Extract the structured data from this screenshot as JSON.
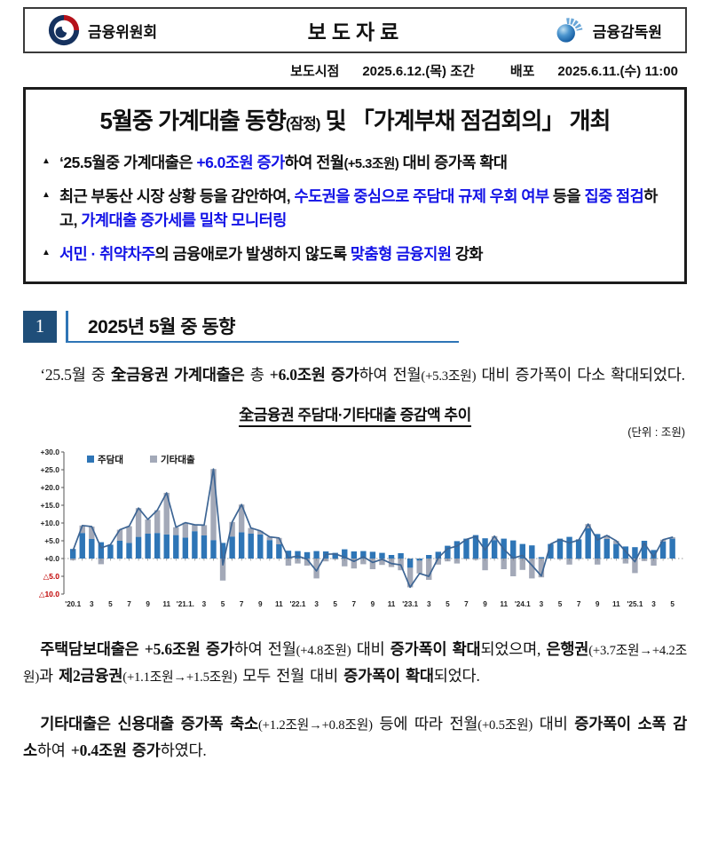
{
  "colors": {
    "text_blue": "#1212e6",
    "navy_box": "#1f4e79",
    "accent": "#2e75b6",
    "bar_mortgage": "#2e75b6",
    "bar_other": "#a3a9b8",
    "line": "#3d6594",
    "negative_red": "#c00000"
  },
  "header": {
    "left_org": "금융위원회",
    "center_title": "보도자료",
    "right_org": "금융감독원"
  },
  "release_info": {
    "time_label": "보도시점",
    "time_value": "2025.6.12.(목) 조간",
    "dist_label": "배포",
    "dist_value": "2025.6.11.(수) 11:00"
  },
  "headline": {
    "title_main": "5월중 가계대출 동향",
    "title_sub": "(잠정)",
    "title_rest": " 및 「가계부채 점검회의」 개최",
    "bullets": [
      {
        "segments": [
          {
            "t": "‘25.5월중 가계대출은 "
          },
          {
            "t": "+6.0조원 증가",
            "c": "blue"
          },
          {
            "t": "하여 전월"
          },
          {
            "t": "(+5.3조원)",
            "small": true
          },
          {
            "t": " 대비 증가폭 확대"
          }
        ]
      },
      {
        "segments": [
          {
            "t": "최근 부동산 시장 상황 등을 감안하여, "
          },
          {
            "t": "수도권을 중심으로 주담대 규제 우회 여부",
            "c": "blue"
          },
          {
            "t": " 등을 "
          },
          {
            "t": "집중 점검",
            "c": "blue"
          },
          {
            "t": "하고, "
          },
          {
            "t": "가계대출 증가세를",
            "c": "blue"
          },
          {
            "t": " "
          },
          {
            "t": "밀착 모니터링",
            "c": "blue"
          }
        ]
      },
      {
        "segments": [
          {
            "t": "서민 · 취약차주",
            "c": "blue"
          },
          {
            "t": "의 금융애로가 발생하지 않도록 "
          },
          {
            "t": "맞춤형 금융지원",
            "c": "blue"
          },
          {
            "t": " 강화"
          }
        ]
      }
    ]
  },
  "section": {
    "number": "1",
    "title": "2025년 5월 중 동향"
  },
  "paragraphs": [
    {
      "segments": [
        {
          "t": "‘25.5월 중 "
        },
        {
          "t": "全금융권 가계대출은",
          "b": true
        },
        {
          "t": " 총 "
        },
        {
          "t": "+6.0조원 증가",
          "b": true
        },
        {
          "t": "하여 전월"
        },
        {
          "t": "(+5.3조원)",
          "small": true
        },
        {
          "t": " 대비 증가폭이 다소 확대되었다."
        }
      ]
    },
    {
      "segments": [
        {
          "t": "주택담보대출은",
          "b": true
        },
        {
          "t": " "
        },
        {
          "t": "+5.6조원 증가",
          "b": true
        },
        {
          "t": "하여 전월"
        },
        {
          "t": "(+4.8조원)",
          "small": true
        },
        {
          "t": " 대비 "
        },
        {
          "t": "증가폭이 확대",
          "b": true
        },
        {
          "t": "되었으며, "
        },
        {
          "t": "은행권",
          "b": true
        },
        {
          "t": "(+3.7조원→+4.2조원)",
          "small": true
        },
        {
          "t": "과 "
        },
        {
          "t": "제2금융권",
          "b": true
        },
        {
          "t": "(+1.1조원→+1.5조원)",
          "small": true
        },
        {
          "t": " 모두 전월 대비 "
        },
        {
          "t": "증가폭이 확대",
          "b": true
        },
        {
          "t": "되었다."
        }
      ]
    },
    {
      "segments": [
        {
          "t": "기타대출은",
          "b": true
        },
        {
          "t": " "
        },
        {
          "t": "신용대출 증가폭 축소",
          "b": true
        },
        {
          "t": "(+1.2조원→+0.8조원)",
          "small": true
        },
        {
          "t": " 등에 따라 전월"
        },
        {
          "t": "(+0.5조원)",
          "small": true
        },
        {
          "t": " 대비 "
        },
        {
          "t": "증가폭이 소폭 감소",
          "b": true
        },
        {
          "t": "하여 "
        },
        {
          "t": "+0.4조원 증가",
          "b": true
        },
        {
          "t": "하였다."
        }
      ]
    }
  ],
  "chart": {
    "title": "全금융권 주담대·기타대출 증감액 추이",
    "unit_note": "(단위 : 조원)"
  },
  "chart_data": {
    "type": "bar+line",
    "title": "全금융권 주담대·기타대출 증감액 추이",
    "ylabel": "조원",
    "ylim": [
      -10,
      30
    ],
    "yticks": [
      30,
      25,
      20,
      15,
      10,
      5,
      0,
      -5,
      -10
    ],
    "ytick_labels": [
      "+30.0",
      "+25.0",
      "+20.0",
      "+15.0",
      "+10.0",
      "+5.0",
      "+0.0",
      "△5.0",
      "△10.0"
    ],
    "legend": [
      {
        "name": "주담대",
        "color": "#2e75b6"
      },
      {
        "name": "기타대출",
        "color": "#a3a9b8"
      }
    ],
    "legend_position": "top-left",
    "grid": false,
    "x_tick_labels": [
      "'20.1",
      "3",
      "5",
      "7",
      "9",
      "11",
      "'21.1.",
      "3",
      "5",
      "7",
      "9",
      "11",
      "'22.1",
      "3",
      "5",
      "7",
      "9",
      "11",
      "'23.1",
      "3",
      "5",
      "7",
      "9",
      "11",
      "'24.1",
      "3",
      "5",
      "7",
      "9",
      "11",
      "'25.1",
      "3",
      "5"
    ],
    "categories": [
      "2020.1",
      "2020.2",
      "2020.3",
      "2020.4",
      "2020.5",
      "2020.6",
      "2020.7",
      "2020.8",
      "2020.9",
      "2020.10",
      "2020.11",
      "2020.12",
      "2021.1",
      "2021.2",
      "2021.3",
      "2021.4",
      "2021.5",
      "2021.6",
      "2021.7",
      "2021.8",
      "2021.9",
      "2021.10",
      "2021.11",
      "2021.12",
      "2022.1",
      "2022.2",
      "2022.3",
      "2022.4",
      "2022.5",
      "2022.6",
      "2022.7",
      "2022.8",
      "2022.9",
      "2022.10",
      "2022.11",
      "2022.12",
      "2023.1",
      "2023.2",
      "2023.3",
      "2023.4",
      "2023.5",
      "2023.6",
      "2023.7",
      "2023.8",
      "2023.9",
      "2023.10",
      "2023.11",
      "2023.12",
      "2024.1",
      "2024.2",
      "2024.3",
      "2024.4",
      "2024.5",
      "2024.6",
      "2024.7",
      "2024.8",
      "2024.9",
      "2024.10",
      "2024.11",
      "2024.12",
      "2025.1",
      "2025.2",
      "2025.3",
      "2025.4",
      "2025.5"
    ],
    "series": [
      {
        "name": "주담대",
        "type": "bar",
        "stack": true,
        "values": [
          2.7,
          7.2,
          5.5,
          4.6,
          3.9,
          5.0,
          4.4,
          6.1,
          7.0,
          7.2,
          6.8,
          6.6,
          5.9,
          7.7,
          6.5,
          5.2,
          4.4,
          6.2,
          7.4,
          7.0,
          6.8,
          5.2,
          4.0,
          2.2,
          2.1,
          1.8,
          2.1,
          2.0,
          1.6,
          2.6,
          2.0,
          2.1,
          1.9,
          1.6,
          1.0,
          1.5,
          -2.6,
          -0.6,
          1.0,
          1.9,
          3.6,
          4.9,
          5.6,
          6.6,
          5.7,
          5.2,
          5.6,
          5.1,
          4.1,
          3.7,
          0.4,
          4.1,
          5.6,
          6.1,
          5.4,
          8.5,
          6.9,
          5.5,
          4.1,
          3.4,
          3.2,
          5.0,
          2.4,
          4.8,
          5.6
        ]
      },
      {
        "name": "기타대출",
        "type": "bar",
        "stack": true,
        "values": [
          -0.5,
          2.1,
          3.5,
          -1.6,
          0.0,
          3.1,
          4.7,
          8.1,
          4.0,
          6.4,
          11.7,
          2.2,
          4.2,
          1.8,
          2.9,
          20.0,
          -6.2,
          4.1,
          7.8,
          1.6,
          1.0,
          0.9,
          1.8,
          -2.0,
          -1.4,
          -2.0,
          -5.6,
          -0.8,
          -0.3,
          -2.2,
          -2.8,
          -1.6,
          -3.0,
          -1.8,
          -2.4,
          -3.3,
          -5.5,
          -3.6,
          -6.0,
          -1.7,
          -0.8,
          -1.4,
          -0.2,
          -0.4,
          -3.3,
          1.1,
          -3.0,
          -5.0,
          -3.2,
          -5.6,
          -5.3,
          0.0,
          -0.3,
          -1.7,
          -0.2,
          1.2,
          -1.7,
          1.0,
          0.9,
          -1.4,
          -4.1,
          -0.7,
          -2.0,
          0.5,
          0.4
        ]
      },
      {
        "name": "합계(선)",
        "type": "line",
        "derived": "sum_of_bars"
      }
    ]
  }
}
